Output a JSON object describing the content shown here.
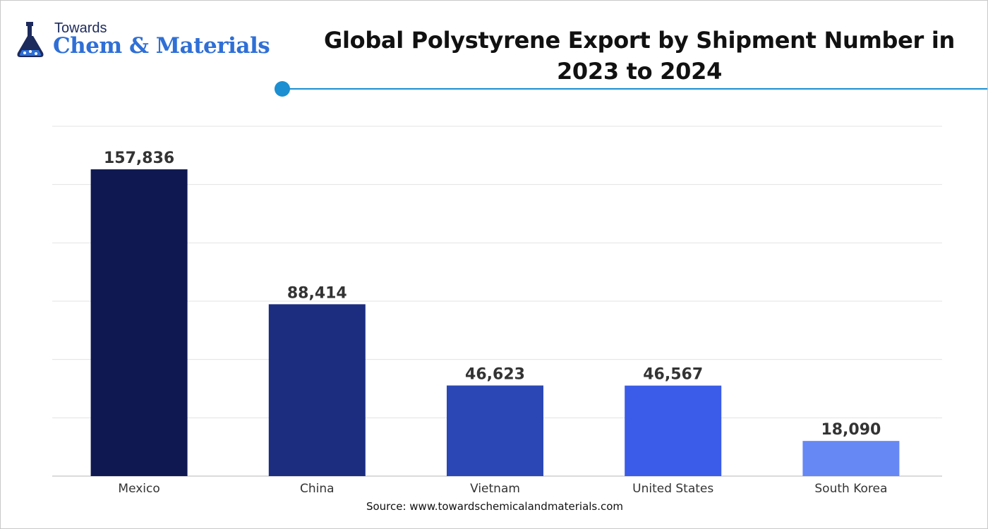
{
  "logo": {
    "line1": "Towards",
    "line2": "Chem & Materials"
  },
  "title": "Global Polystyrene Export by Shipment Number in 2023 to 2024",
  "source": "Source: www.towardschemicalandmaterials.com",
  "chart_data": {
    "type": "bar",
    "title": "Global Polystyrene Export by Shipment Number in 2023 to 2024",
    "categories": [
      "Mexico",
      "China",
      "Vietnam",
      "United States",
      "South Korea"
    ],
    "values": [
      157836,
      88414,
      46623,
      46567,
      18090
    ],
    "value_labels": [
      "157,836",
      "88,414",
      "46,623",
      "46,567",
      "18,090"
    ],
    "colors": [
      "#0f1850",
      "#1c2d80",
      "#2a47b5",
      "#3b5ce8",
      "#6688f5"
    ],
    "ylim": [
      0,
      180000
    ],
    "grid": true,
    "xlabel": "",
    "ylabel": "",
    "legend": "none"
  }
}
